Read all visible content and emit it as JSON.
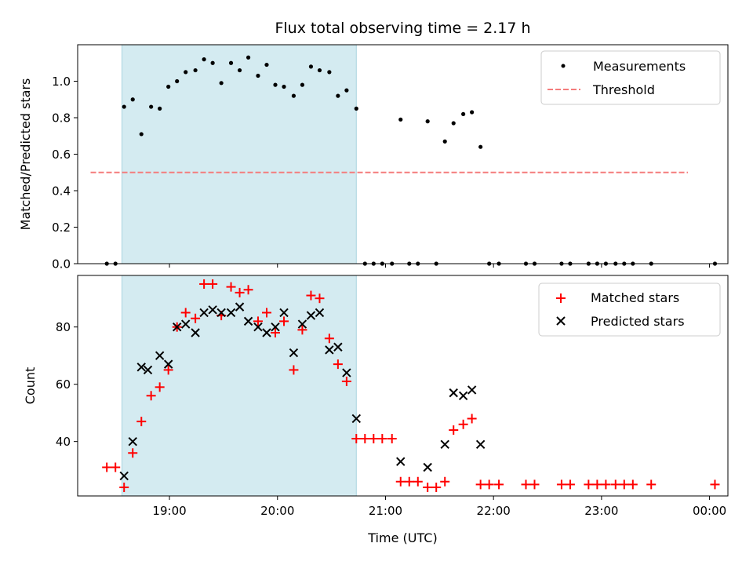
{
  "chart_data": [
    {
      "type": "scatter",
      "title": "Flux total observing time = 2.17 h",
      "xlabel": "",
      "ylabel": "Matched/Predicted stars",
      "xlim": [
        18.15,
        24.17
      ],
      "ylim": [
        0,
        1.2
      ],
      "yticks": [
        0,
        0.2,
        0.4,
        0.6,
        0.8,
        1.0
      ],
      "ytick_labels": [
        "0.0",
        "0.2",
        "0.4",
        "0.6",
        "0.8",
        "1.0"
      ],
      "xticks": [
        19,
        20,
        21,
        22,
        23,
        24
      ],
      "shaded_interval": [
        18.56,
        20.73
      ],
      "shade_color": "#d4ebf1",
      "legend_position": "top-right",
      "series": [
        {
          "name": "Measurements",
          "marker": "dot",
          "color": "#000000",
          "x": [
            18.42,
            18.5,
            18.58,
            18.66,
            18.74,
            18.83,
            18.91,
            18.99,
            19.07,
            19.15,
            19.24,
            19.32,
            19.4,
            19.48,
            19.57,
            19.65,
            19.73,
            19.82,
            19.9,
            19.98,
            20.06,
            20.15,
            20.23,
            20.31,
            20.39,
            20.48,
            20.56,
            20.64,
            20.73,
            20.81,
            20.89,
            20.97,
            21.06,
            21.14,
            21.22,
            21.3,
            21.39,
            21.47,
            21.55,
            21.63,
            21.72,
            21.8,
            21.88,
            21.96,
            22.05,
            22.3,
            22.38,
            22.63,
            22.71,
            22.88,
            22.96,
            23.04,
            23.13,
            23.21,
            23.29,
            23.46,
            24.05
          ],
          "y": [
            0,
            0,
            0.86,
            0.9,
            0.71,
            0.86,
            0.85,
            0.97,
            1.0,
            1.05,
            1.06,
            1.12,
            1.1,
            0.99,
            1.1,
            1.06,
            1.13,
            1.03,
            1.09,
            0.98,
            0.97,
            0.92,
            0.98,
            1.08,
            1.06,
            1.05,
            0.92,
            0.95,
            0.85,
            0,
            0,
            0,
            0,
            0.79,
            0,
            0,
            0.78,
            0,
            0.67,
            0.77,
            0.82,
            0.83,
            0.64,
            0,
            0,
            0,
            0,
            0,
            0,
            0,
            0,
            0,
            0,
            0,
            0,
            0,
            0
          ]
        },
        {
          "name": "Threshold",
          "marker": "dashed-line",
          "color": "#f47c7c",
          "x": [
            18.27,
            23.8
          ],
          "y": [
            0.5,
            0.5
          ]
        }
      ]
    },
    {
      "type": "scatter",
      "title": "",
      "xlabel": "Time (UTC)",
      "ylabel": "Count",
      "xlim": [
        18.15,
        24.17
      ],
      "ylim": [
        21,
        98
      ],
      "yticks": [
        40,
        60,
        80
      ],
      "ytick_labels": [
        "40",
        "60",
        "80"
      ],
      "xticks": [
        19,
        20,
        21,
        22,
        23,
        24
      ],
      "xtick_labels": [
        "19:00",
        "20:00",
        "21:00",
        "22:00",
        "23:00",
        "00:00"
      ],
      "shaded_interval": [
        18.56,
        20.73
      ],
      "shade_color": "#d4ebf1",
      "legend_position": "top-right",
      "series": [
        {
          "name": "Matched stars",
          "marker": "plus",
          "color": "#ff0000",
          "x": [
            18.42,
            18.5,
            18.58,
            18.66,
            18.74,
            18.83,
            18.91,
            18.99,
            19.07,
            19.15,
            19.24,
            19.32,
            19.4,
            19.48,
            19.57,
            19.65,
            19.73,
            19.82,
            19.9,
            19.98,
            20.06,
            20.15,
            20.23,
            20.31,
            20.39,
            20.48,
            20.56,
            20.64,
            20.73,
            20.81,
            20.89,
            20.97,
            21.06,
            21.14,
            21.22,
            21.3,
            21.39,
            21.47,
            21.55,
            21.63,
            21.72,
            21.8,
            21.88,
            21.96,
            22.05,
            22.3,
            22.38,
            22.63,
            22.71,
            22.88,
            22.96,
            23.04,
            23.13,
            23.21,
            23.29,
            23.46,
            24.05
          ],
          "y": [
            31,
            31,
            24,
            36,
            47,
            56,
            59,
            65,
            80,
            85,
            83,
            95,
            95,
            84,
            94,
            92,
            93,
            82,
            85,
            78,
            82,
            65,
            79,
            91,
            90,
            76,
            67,
            61,
            41,
            41,
            41,
            41,
            41,
            26,
            26,
            26,
            24,
            24,
            26,
            44,
            46,
            48,
            25,
            25,
            25,
            25,
            25,
            25,
            25,
            25,
            25,
            25,
            25,
            25,
            25,
            25,
            25
          ]
        },
        {
          "name": "Predicted stars",
          "marker": "x",
          "color": "#000000",
          "x": [
            18.58,
            18.66,
            18.74,
            18.8,
            18.91,
            18.99,
            19.07,
            19.15,
            19.24,
            19.32,
            19.4,
            19.48,
            19.57,
            19.65,
            19.73,
            19.82,
            19.9,
            19.98,
            20.06,
            20.15,
            20.23,
            20.31,
            20.39,
            20.48,
            20.56,
            20.64,
            20.73,
            21.14,
            21.39,
            21.55,
            21.63,
            21.72,
            21.8,
            21.88
          ],
          "y": [
            28,
            40,
            66,
            65,
            70,
            67,
            80,
            81,
            78,
            85,
            86,
            85,
            85,
            87,
            82,
            80,
            78,
            80,
            85,
            71,
            81,
            84,
            85,
            72,
            73,
            64,
            48,
            33,
            31,
            39,
            57,
            56,
            58,
            39
          ]
        }
      ]
    }
  ]
}
